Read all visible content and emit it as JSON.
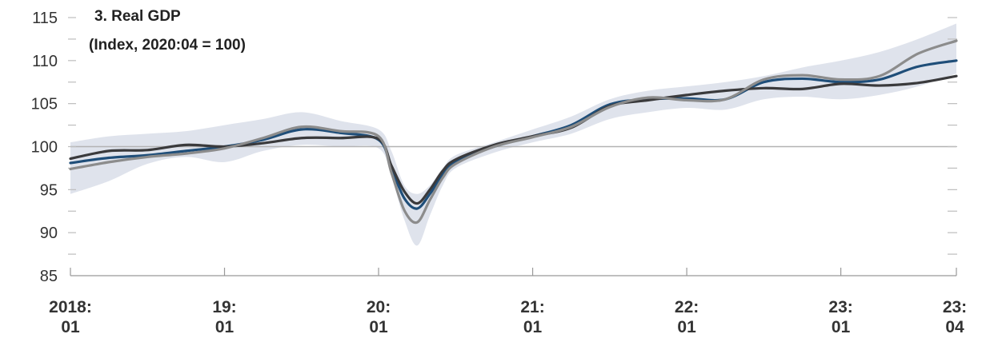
{
  "chart_data": {
    "type": "line",
    "title": "3. Real GDP",
    "subtitle": "(Index, 2020:04 = 100)",
    "ylim": [
      85,
      115
    ],
    "yticks": [
      85,
      90,
      95,
      100,
      105,
      110,
      115
    ],
    "ytick_labels": [
      "85",
      "90",
      "95",
      "100",
      "105",
      "110",
      "115"
    ],
    "xlim": [
      2018.0,
      2023.75
    ],
    "xticks": [
      {
        "x": 2018.0,
        "line1": "2018:",
        "line2": "01"
      },
      {
        "x": 2019.0,
        "line1": "19:",
        "line2": "01"
      },
      {
        "x": 2020.0,
        "line1": "20:",
        "line2": "01"
      },
      {
        "x": 2021.0,
        "line1": "21:",
        "line2": "01"
      },
      {
        "x": 2022.0,
        "line1": "22:",
        "line2": "01"
      },
      {
        "x": 2023.0,
        "line1": "23:",
        "line2": "01"
      },
      {
        "x": 2023.75,
        "line1": "23:",
        "line2": "04"
      }
    ],
    "reference_line": 100,
    "grid": false,
    "colors": {
      "band": "#dfe3ec",
      "reference": "#b3b3b3",
      "axis": "#999999",
      "series_blue": "#1f4e79",
      "series_dark": "#3a3a3c",
      "series_gray": "#8c8c8c"
    },
    "band": {
      "x": [
        2018.0,
        2018.25,
        2018.5,
        2018.75,
        2019.0,
        2019.25,
        2019.5,
        2019.75,
        2020.0,
        2020.083,
        2020.167,
        2020.25,
        2020.333,
        2020.417,
        2020.5,
        2020.75,
        2021.0,
        2021.25,
        2021.5,
        2021.75,
        2022.0,
        2022.25,
        2022.5,
        2022.75,
        2023.0,
        2023.25,
        2023.5,
        2023.75
      ],
      "lower": [
        94.5,
        96.0,
        98.0,
        98.8,
        98.2,
        99.5,
        100.2,
        100.0,
        99.8,
        96.5,
        91.5,
        88.5,
        92.0,
        95.5,
        97.5,
        99.3,
        100.5,
        101.5,
        103.2,
        104.0,
        104.5,
        104.3,
        105.5,
        105.8,
        105.5,
        106.0,
        107.0,
        108.5
      ],
      "upper": [
        100.5,
        101.2,
        101.5,
        101.8,
        102.5,
        103.2,
        104.0,
        103.0,
        102.0,
        99.5,
        95.5,
        94.5,
        95.5,
        97.5,
        99.0,
        100.5,
        102.0,
        103.5,
        105.5,
        106.5,
        107.0,
        107.5,
        108.2,
        109.2,
        110.0,
        111.0,
        112.5,
        114.3
      ]
    },
    "series": [
      {
        "color_key": "series_blue",
        "width": 3.2,
        "x": [
          2018.0,
          2018.25,
          2018.5,
          2018.75,
          2019.0,
          2019.25,
          2019.5,
          2019.75,
          2020.0,
          2020.083,
          2020.167,
          2020.25,
          2020.333,
          2020.417,
          2020.5,
          2020.75,
          2021.0,
          2021.25,
          2021.5,
          2021.75,
          2022.0,
          2022.25,
          2022.5,
          2022.75,
          2023.0,
          2023.25,
          2023.5,
          2023.75
        ],
        "y": [
          98.1,
          98.7,
          99.0,
          99.5,
          100.0,
          100.8,
          102.0,
          101.6,
          100.8,
          97.5,
          94.0,
          92.8,
          94.5,
          96.8,
          98.3,
          100.0,
          101.2,
          102.5,
          104.9,
          105.5,
          105.6,
          105.5,
          107.5,
          107.9,
          107.5,
          107.8,
          109.3,
          110.0
        ]
      },
      {
        "color_key": "series_dark",
        "width": 3.2,
        "x": [
          2018.0,
          2018.25,
          2018.5,
          2018.75,
          2019.0,
          2019.25,
          2019.5,
          2019.75,
          2020.0,
          2020.083,
          2020.167,
          2020.25,
          2020.333,
          2020.417,
          2020.5,
          2020.75,
          2021.0,
          2021.25,
          2021.5,
          2021.75,
          2022.0,
          2022.25,
          2022.5,
          2022.75,
          2023.0,
          2023.25,
          2023.5,
          2023.75
        ],
        "y": [
          98.6,
          99.5,
          99.6,
          100.2,
          100.0,
          100.4,
          101.0,
          101.0,
          100.9,
          97.8,
          94.8,
          93.4,
          95.0,
          97.2,
          98.5,
          100.2,
          101.2,
          102.2,
          104.7,
          105.4,
          106.0,
          106.5,
          106.8,
          106.7,
          107.3,
          107.1,
          107.4,
          108.2
        ]
      },
      {
        "color_key": "series_gray",
        "width": 3.2,
        "x": [
          2018.0,
          2018.25,
          2018.5,
          2018.75,
          2019.0,
          2019.25,
          2019.5,
          2019.75,
          2020.0,
          2020.083,
          2020.167,
          2020.25,
          2020.333,
          2020.417,
          2020.5,
          2020.75,
          2021.0,
          2021.25,
          2021.5,
          2021.75,
          2022.0,
          2022.25,
          2022.5,
          2022.75,
          2023.0,
          2023.25,
          2023.5,
          2023.75
        ],
        "y": [
          97.4,
          98.2,
          98.8,
          99.2,
          99.8,
          101.0,
          102.3,
          101.8,
          101.2,
          97.0,
          92.6,
          91.2,
          93.8,
          96.4,
          98.0,
          100.0,
          101.1,
          102.3,
          104.6,
          105.7,
          105.4,
          105.5,
          107.8,
          108.3,
          107.8,
          108.2,
          110.8,
          112.3
        ]
      }
    ]
  }
}
